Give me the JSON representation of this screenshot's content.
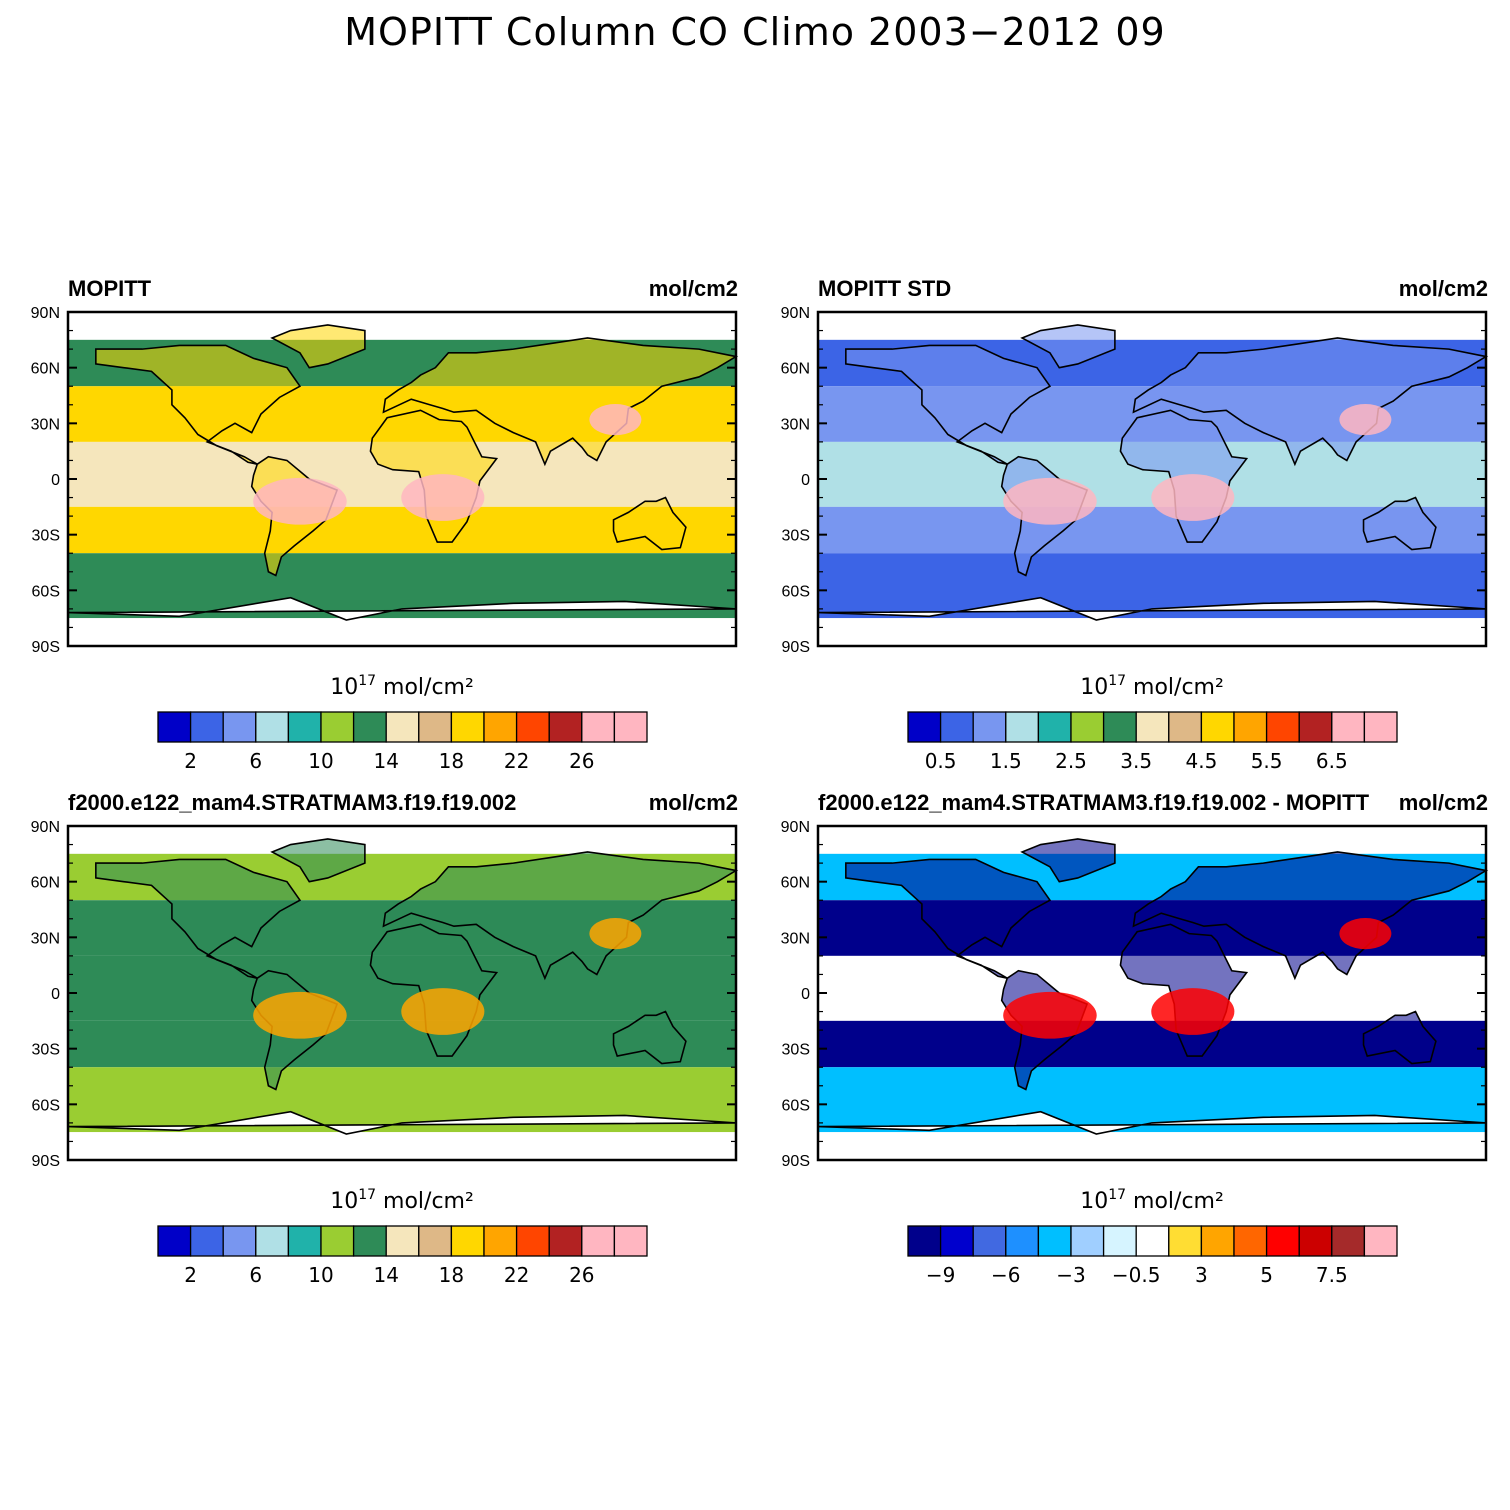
{
  "title": "MOPITT Column CO Climo 2003−2012 09",
  "charts": [
    {
      "id": "p1",
      "left_title": "MOPITT",
      "right_title": "mol/cm2",
      "colorbar_label_base": "10",
      "colorbar_label_exp": "17",
      "colorbar_label_unit": "mol/cm²",
      "palette": [
        "#0000c8",
        "#3c64e6",
        "#7896f0",
        "#b0e0e6",
        "#20b2aa",
        "#9acd32",
        "#2e8b57",
        "#f5e6bc",
        "#deb887",
        "#ffd700",
        "#ffa500",
        "#ff4500",
        "#b22222",
        "#ffb6c1",
        "#ffb6c1"
      ],
      "colorbar_ticks": [
        "2",
        "6",
        "10",
        "14",
        "18",
        "22",
        "26"
      ],
      "ocean": "#2e8b57",
      "land": "#ffd700",
      "tropics": "#f5e6bc",
      "hotspot": "#ffb6c1"
    },
    {
      "id": "p2",
      "left_title": "MOPITT STD",
      "right_title": "mol/cm2",
      "colorbar_label_base": "10",
      "colorbar_label_exp": "17",
      "colorbar_label_unit": "mol/cm²",
      "palette": [
        "#0000c8",
        "#3c64e6",
        "#7896f0",
        "#b0e0e6",
        "#20b2aa",
        "#9acd32",
        "#2e8b57",
        "#f5e6bc",
        "#deb887",
        "#ffd700",
        "#ffa500",
        "#ff4500",
        "#b22222",
        "#ffb6c1",
        "#ffb6c1"
      ],
      "colorbar_ticks": [
        "0.5",
        "1.5",
        "2.5",
        "3.5",
        "4.5",
        "5.5",
        "6.5"
      ],
      "ocean": "#3c64e6",
      "land": "#7896f0",
      "tropics": "#b0e0e6",
      "hotspot": "#ffb6c1"
    },
    {
      "id": "p3",
      "left_title": "f2000.e122_mam4.STRATMAM3.f19.f19.002",
      "right_title": "mol/cm2",
      "colorbar_label_base": "10",
      "colorbar_label_exp": "17",
      "colorbar_label_unit": "mol/cm²",
      "palette": [
        "#0000c8",
        "#3c64e6",
        "#7896f0",
        "#b0e0e6",
        "#20b2aa",
        "#9acd32",
        "#2e8b57",
        "#f5e6bc",
        "#deb887",
        "#ffd700",
        "#ffa500",
        "#ff4500",
        "#b22222",
        "#ffb6c1",
        "#ffb6c1"
      ],
      "colorbar_ticks": [
        "2",
        "6",
        "10",
        "14",
        "18",
        "22",
        "26"
      ],
      "ocean": "#9acd32",
      "land": "#2e8b57",
      "tropics": "#2e8b57",
      "hotspot": "#ffa500"
    },
    {
      "id": "p4",
      "left_title": "f2000.e122_mam4.STRATMAM3.f19.f19.002 - MOPITT",
      "right_title": "mol/cm2",
      "colorbar_label_base": "10",
      "colorbar_label_exp": "17",
      "colorbar_label_unit": "mol/cm²",
      "palette": [
        "#00008b",
        "#0000cd",
        "#4169e1",
        "#1e90ff",
        "#00bfff",
        "#a0cfff",
        "#d6f4ff",
        "#ffffff",
        "#ffdd33",
        "#ffa500",
        "#ff6600",
        "#ff0000",
        "#cc0000",
        "#a52a2a",
        "#ffb6c1"
      ],
      "colorbar_ticks": [
        "−9",
        "−6",
        "−3",
        "−0.5",
        "3",
        "5",
        "7.5"
      ],
      "ocean": "#00bfff",
      "land": "#00008b",
      "tropics": "#ffffff",
      "hotspot": "#ff0000"
    }
  ],
  "lat_labels": [
    "90N",
    "60N",
    "30N",
    "0",
    "30S",
    "60S",
    "90S"
  ]
}
